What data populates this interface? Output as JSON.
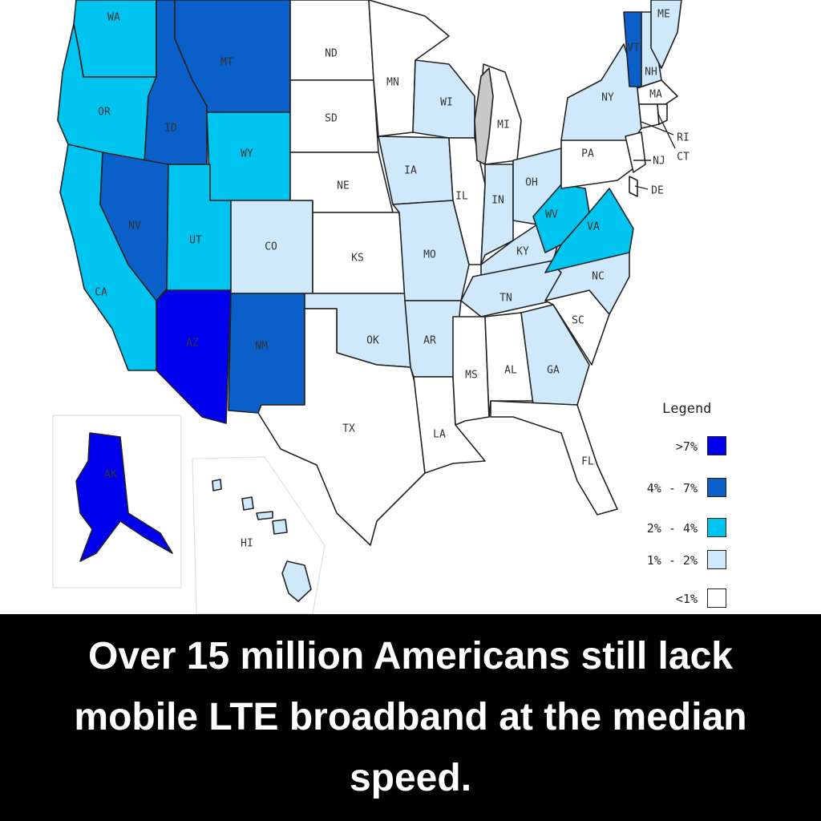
{
  "legend": {
    "title": "Legend",
    "bins": [
      {
        "label": ">7%",
        "color": "#0000ee"
      },
      {
        "label": "4% - 7%",
        "color": "#0a5fc8"
      },
      {
        "label": "2% - 4%",
        "color": "#00c4f0"
      },
      {
        "label": "1% - 2%",
        "color": "#cfe9fb"
      },
      {
        "label": "<1%",
        "color": "#ffffff"
      }
    ]
  },
  "other_colors": {
    "no_data": "#c8c8c8",
    "water": "#ffffff",
    "border": "#222222"
  },
  "states": {
    "WA": {
      "bin": 2
    },
    "OR": {
      "bin": 2
    },
    "CA": {
      "bin": 2
    },
    "ID": {
      "bin": 1
    },
    "NV": {
      "bin": 1
    },
    "MT": {
      "bin": 1
    },
    "WY": {
      "bin": 2
    },
    "UT": {
      "bin": 2
    },
    "AZ": {
      "bin": 0
    },
    "CO": {
      "bin": 3
    },
    "NM": {
      "bin": 1
    },
    "ND": {
      "bin": 4
    },
    "SD": {
      "bin": 4
    },
    "NE": {
      "bin": 4
    },
    "KS": {
      "bin": 4
    },
    "OK": {
      "bin": 3
    },
    "TX": {
      "bin": 4
    },
    "MN": {
      "bin": 4
    },
    "IA": {
      "bin": 3
    },
    "MO": {
      "bin": 3
    },
    "AR": {
      "bin": 3
    },
    "LA": {
      "bin": 4
    },
    "WI": {
      "bin": 3
    },
    "IL": {
      "bin": 4
    },
    "MI": {
      "bin": 4
    },
    "IN": {
      "bin": 3
    },
    "OH": {
      "bin": 3
    },
    "KY": {
      "bin": 3
    },
    "TN": {
      "bin": 3
    },
    "MS": {
      "bin": 4
    },
    "AL": {
      "bin": 4
    },
    "GA": {
      "bin": 3
    },
    "FL": {
      "bin": 4
    },
    "SC": {
      "bin": 4
    },
    "NC": {
      "bin": 3
    },
    "VA": {
      "bin": 2
    },
    "WV": {
      "bin": 2
    },
    "PA": {
      "bin": 4
    },
    "NY": {
      "bin": 3
    },
    "VT": {
      "bin": 1
    },
    "NH": {
      "bin": 3
    },
    "ME": {
      "bin": 3
    },
    "MA": {
      "bin": 4
    },
    "CT": {
      "bin": 4
    },
    "RI": {
      "bin": 4
    },
    "NJ": {
      "bin": 4
    },
    "DE": {
      "bin": 4
    },
    "AK": {
      "bin": 0
    },
    "HI": {
      "bin": 3
    }
  },
  "labels": {
    "WA": "WA",
    "OR": "OR",
    "CA": "CA",
    "ID": "ID",
    "NV": "NV",
    "MT": "MT",
    "WY": "WY",
    "UT": "UT",
    "AZ": "AZ",
    "CO": "CO",
    "NM": "NM",
    "ND": "ND",
    "SD": "SD",
    "NE": "NE",
    "KS": "KS",
    "OK": "OK",
    "TX": "TX",
    "MN": "MN",
    "IA": "IA",
    "MO": "MO",
    "AR": "AR",
    "LA": "LA",
    "WI": "WI",
    "IL": "IL",
    "MI": "MI",
    "IN": "IN",
    "OH": "OH",
    "KY": "KY",
    "TN": "TN",
    "MS": "MS",
    "AL": "AL",
    "GA": "GA",
    "FL": "FL",
    "SC": "SC",
    "NC": "NC",
    "VA": "VA",
    "WV": "WV",
    "PA": "PA",
    "NY": "NY",
    "VT": "VT",
    "NH": "NH",
    "ME": "ME",
    "MA": "MA",
    "CT": "CT",
    "RI": "RI",
    "NJ": "NJ",
    "DE": "DE",
    "AK": "AK",
    "HI": "HI"
  },
  "caption": "Over 15 million Americans still lack mobile LTE broadband at the median speed."
}
